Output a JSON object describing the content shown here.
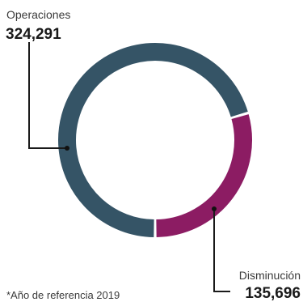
{
  "chart_data": {
    "type": "pie",
    "variant": "donut",
    "title": "",
    "categories": [
      "Operaciones",
      "Disminución"
    ],
    "values": [
      324291,
      135696
    ],
    "value_labels": [
      "324,291",
      "135,696"
    ],
    "colors": [
      "#355466",
      "#8c1c63"
    ],
    "footnote": "*Año de referencia 2019"
  }
}
